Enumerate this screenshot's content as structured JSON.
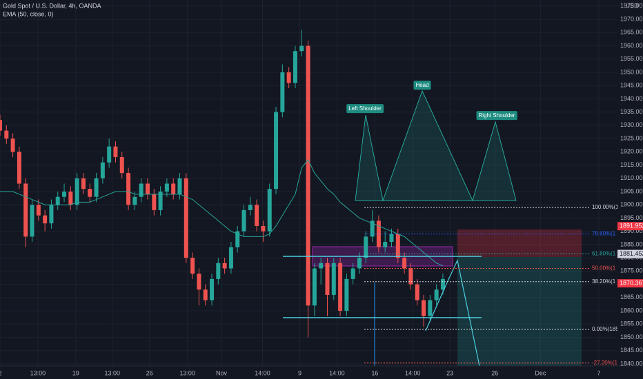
{
  "chart_data": {
    "type": "candlestick",
    "title": "Gold Spot / U.S. Dollar, 4h, OANDA",
    "subtitle": "EMA (50, close, 0)",
    "currency": "USD",
    "up_color": "#26a69a",
    "down_color": "#ef5350",
    "open": [
      1932,
      1928,
      1925,
      1920,
      1908,
      1888,
      1900,
      1896,
      1893,
      1900,
      1903,
      1905,
      1900,
      1910,
      1906,
      1903,
      1910,
      1916,
      1922,
      1918,
      1912,
      1900,
      1903,
      1908,
      1904,
      1898,
      1905,
      1908,
      1904,
      1910,
      1880,
      1874,
      1868,
      1864,
      1872,
      1878,
      1876,
      1884,
      1890,
      1898,
      1900,
      1892,
      1890,
      1906,
      1935,
      1950,
      1946,
      1958,
      1960,
      1862,
      1876,
      1878,
      1866,
      1878,
      1860,
      1872,
      1876,
      1880,
      1888,
      1894,
      1884,
      1886,
      1889,
      1880,
      1876,
      1870,
      1864,
      1858,
      1864,
      1868
    ],
    "high": [
      1934,
      1930,
      1927,
      1922,
      1910,
      1902,
      1902,
      1898,
      1902,
      1905,
      1908,
      1907,
      1912,
      1912,
      1908,
      1912,
      1918,
      1925,
      1924,
      1920,
      1914,
      1905,
      1910,
      1910,
      1906,
      1907,
      1910,
      1910,
      1912,
      1912,
      1882,
      1876,
      1870,
      1874,
      1880,
      1880,
      1886,
      1892,
      1900,
      1903,
      1902,
      1894,
      1908,
      1937,
      1953,
      1952,
      1960,
      1966,
      1962,
      1878,
      1880,
      1880,
      1880,
      1880,
      1874,
      1878,
      1882,
      1890,
      1898,
      1896,
      1890,
      1891,
      1891,
      1882,
      1878,
      1872,
      1866,
      1866,
      1870,
      1874
    ],
    "low": [
      1926,
      1923,
      1918,
      1906,
      1884,
      1886,
      1894,
      1890,
      1891,
      1898,
      1901,
      1898,
      1898,
      1904,
      1901,
      1901,
      1908,
      1914,
      1916,
      1910,
      1898,
      1898,
      1901,
      1902,
      1896,
      1896,
      1903,
      1902,
      1902,
      1878,
      1872,
      1862,
      1862,
      1862,
      1870,
      1874,
      1874,
      1882,
      1888,
      1896,
      1890,
      1886,
      1888,
      1904,
      1933,
      1944,
      1944,
      1956,
      1850,
      1858,
      1870,
      1858,
      1864,
      1858,
      1858,
      1870,
      1874,
      1878,
      1886,
      1882,
      1882,
      1884,
      1878,
      1874,
      1868,
      1862,
      1854,
      1856,
      1862,
      1866
    ],
    "close": [
      1928,
      1925,
      1920,
      1908,
      1888,
      1900,
      1896,
      1893,
      1900,
      1903,
      1905,
      1900,
      1910,
      1906,
      1903,
      1910,
      1916,
      1922,
      1918,
      1912,
      1900,
      1903,
      1908,
      1904,
      1898,
      1905,
      1908,
      1904,
      1910,
      1880,
      1874,
      1868,
      1864,
      1872,
      1878,
      1876,
      1884,
      1890,
      1898,
      1900,
      1892,
      1890,
      1906,
      1935,
      1950,
      1946,
      1958,
      1960,
      1862,
      1876,
      1878,
      1866,
      1878,
      1860,
      1872,
      1876,
      1880,
      1888,
      1894,
      1884,
      1886,
      1889,
      1880,
      1876,
      1870,
      1864,
      1858,
      1864,
      1868,
      1872
    ],
    "ema": {
      "name": "EMA (50, close, 0)",
      "color": "#26a69a",
      "values": [
        1905,
        1905,
        1905,
        1904,
        1903,
        1902,
        1901,
        1900,
        1900,
        1900,
        1900,
        1900,
        1901,
        1901,
        1901,
        1902,
        1903,
        1904,
        1905,
        1905,
        1905,
        1904,
        1904,
        1904,
        1904,
        1904,
        1904,
        1904,
        1904,
        1903,
        1902,
        1900,
        1898,
        1896,
        1894,
        1892,
        1890,
        1889,
        1888,
        1888,
        1888,
        1888,
        1889,
        1892,
        1896,
        1900,
        1904,
        1914,
        1917,
        1912,
        1909,
        1906,
        1904,
        1901,
        1899,
        1897,
        1895,
        1894,
        1893,
        1892,
        1891,
        1890,
        1889,
        1888,
        1886,
        1884,
        1882,
        1880,
        1878,
        1877
      ]
    },
    "xlim": [
      0,
      96.2
    ],
    "xticks": [
      {
        "value": 0,
        "label": "2"
      },
      {
        "value": 5.9,
        "label": "13:00"
      },
      {
        "value": 11.8,
        "label": "19"
      },
      {
        "value": 17.5,
        "label": "13:00"
      },
      {
        "value": 23.3,
        "label": "26"
      },
      {
        "value": 29.2,
        "label": "13:00"
      },
      {
        "value": 34.5,
        "label": "Nov"
      },
      {
        "value": 40.9,
        "label": "14:00"
      },
      {
        "value": 46.7,
        "label": "9"
      },
      {
        "value": 52.5,
        "label": "14:00"
      },
      {
        "value": 58.4,
        "label": "16"
      },
      {
        "value": 64.3,
        "label": "14:00"
      },
      {
        "value": 70.1,
        "label": "23"
      },
      {
        "value": 77.1,
        "label": "26"
      },
      {
        "value": 84.2,
        "label": "Dec"
      },
      {
        "value": 93.3,
        "label": "7"
      }
    ],
    "ylim": [
      1839.2,
      1977.3
    ],
    "yticks": [
      {
        "value": 1840,
        "label": "1840.00"
      },
      {
        "value": 1845,
        "label": "1845.00"
      },
      {
        "value": 1850,
        "label": "1850.00"
      },
      {
        "value": 1855,
        "label": "1855.00"
      },
      {
        "value": 1860,
        "label": "1860.00"
      },
      {
        "value": 1865,
        "label": "1865.00"
      },
      {
        "value": 1870,
        "label": "1870.00"
      },
      {
        "value": 1875,
        "label": "1875.00"
      },
      {
        "value": 1880,
        "label": "1880.00"
      },
      {
        "value": 1885,
        "label": "1885.00"
      },
      {
        "value": 1890,
        "label": "1890.00"
      },
      {
        "value": 1895,
        "label": "1895.00"
      },
      {
        "value": 1900,
        "label": "1900.00"
      },
      {
        "value": 1905,
        "label": "1905.00"
      },
      {
        "value": 1910,
        "label": "1910.00"
      },
      {
        "value": 1915,
        "label": "1915.00"
      },
      {
        "value": 1920,
        "label": "1920.00"
      },
      {
        "value": 1925,
        "label": "1925.00"
      },
      {
        "value": 1930,
        "label": "1930.00"
      },
      {
        "value": 1935,
        "label": "1935.00"
      },
      {
        "value": 1940,
        "label": "1940.00"
      },
      {
        "value": 1945,
        "label": "1945.00"
      },
      {
        "value": 1950,
        "label": "1950.00"
      },
      {
        "value": 1955,
        "label": "1955.00"
      },
      {
        "value": 1960,
        "label": "1960.00"
      },
      {
        "value": 1965,
        "label": "1965.00"
      },
      {
        "value": 1970,
        "label": "1970.00"
      },
      {
        "value": 1975,
        "label": "1975.00"
      }
    ],
    "grid": true,
    "fib_levels": [
      {
        "label": "100.00%(1",
        "value": 1899,
        "color": "#d1d4dc"
      },
      {
        "label": "78.60%(1",
        "value": 1889,
        "color": "#2962ff"
      },
      {
        "label": "61.80%(1",
        "value": 1881.5,
        "color": "#26a69a"
      },
      {
        "label": "50.00%(1",
        "value": 1876,
        "color": "#ef5350"
      },
      {
        "label": "38.20%(1",
        "value": 1871,
        "color": "#d1d4dc"
      },
      {
        "label": "0.00%(185",
        "value": 1853,
        "color": "#d1d4dc"
      },
      {
        "label": "-27.20%(1",
        "value": 1840.3,
        "color": "#ef5350"
      }
    ],
    "price_labels": [
      {
        "value": 1891.952,
        "color": "#f23645"
      },
      {
        "value": 1881.452,
        "color": "#d1d4dc"
      },
      {
        "value": 1870.367,
        "color": "#f23645"
      }
    ],
    "annotations": [
      "Left Shoulder",
      "Head",
      "Right Shoulder"
    ]
  }
}
